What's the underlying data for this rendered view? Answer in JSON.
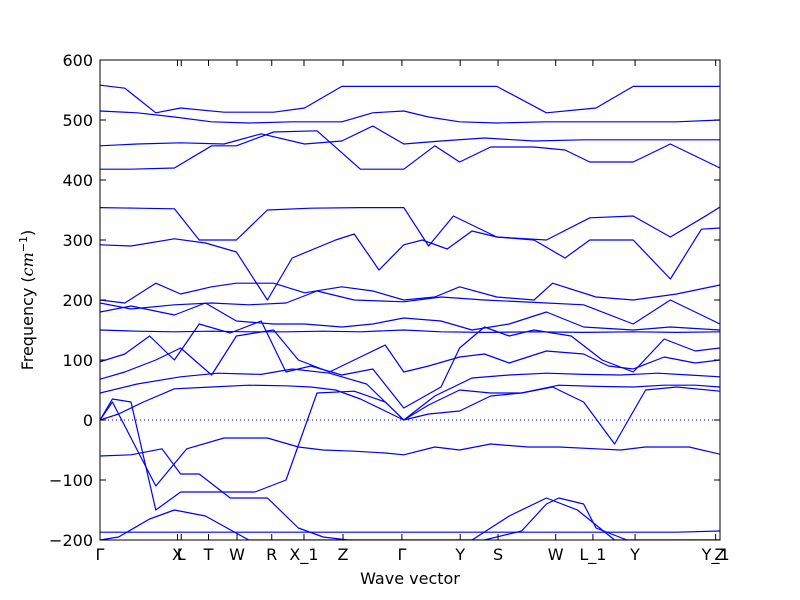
{
  "chart_data": {
    "type": "line",
    "xlabel": "Wave vector",
    "ylabel": "Frequency ",
    "ylabel_unit_base": "cm",
    "ylabel_unit_exp": "−1",
    "ylim": [
      -200,
      600
    ],
    "yticks": [
      -200,
      -100,
      0,
      100,
      200,
      300,
      400,
      500,
      600
    ],
    "grid": false,
    "line_color": "#0000ff",
    "xlim": [
      0,
      1
    ],
    "kpoints": [
      {
        "label": "Γ",
        "x": 0.0
      },
      {
        "label": "X",
        "x": 0.125
      },
      {
        "label": "L",
        "x": 0.131
      },
      {
        "label": "T",
        "x": 0.175
      },
      {
        "label": "W",
        "x": 0.221
      },
      {
        "label": "R",
        "x": 0.277
      },
      {
        "label": "X_1",
        "x": 0.329
      },
      {
        "label": "Z",
        "x": 0.392
      },
      {
        "label": "Γ",
        "x": 0.487
      },
      {
        "label": "Y",
        "x": 0.581
      },
      {
        "label": "S",
        "x": 0.642
      },
      {
        "label": "W",
        "x": 0.735
      },
      {
        "label": "L_1",
        "x": 0.795
      },
      {
        "label": "Y",
        "x": 0.863
      },
      {
        "label": "Y_1",
        "x": 0.993
      },
      {
        "label": "Z",
        "x": 1.0
      }
    ],
    "zero_line": true,
    "series": [
      {
        "x": [
          0,
          0.04,
          0.09,
          0.13,
          0.2,
          0.28,
          0.33,
          0.39,
          0.49,
          0.58,
          0.64,
          0.72,
          0.8,
          0.86,
          0.93,
          1.0
        ],
        "y": [
          558,
          553,
          512,
          520,
          513,
          513,
          520,
          556,
          556,
          556,
          556,
          512,
          520,
          556,
          556,
          556
        ]
      },
      {
        "x": [
          0,
          0.06,
          0.12,
          0.18,
          0.24,
          0.31,
          0.39,
          0.44,
          0.49,
          0.53,
          0.58,
          0.64,
          0.72,
          0.8,
          0.86,
          0.93,
          1.0
        ],
        "y": [
          515,
          512,
          505,
          497,
          495,
          497,
          497,
          512,
          515,
          505,
          497,
          495,
          497,
          497,
          497,
          497,
          500
        ]
      },
      {
        "x": [
          0,
          0.06,
          0.13,
          0.2,
          0.26,
          0.33,
          0.39,
          0.44,
          0.49,
          0.55,
          0.62,
          0.7,
          0.78,
          0.86,
          0.92,
          1.0
        ],
        "y": [
          457,
          460,
          462,
          460,
          477,
          460,
          465,
          490,
          460,
          465,
          470,
          465,
          467,
          467,
          467,
          467
        ]
      },
      {
        "x": [
          0,
          0.05,
          0.12,
          0.18,
          0.22,
          0.28,
          0.35,
          0.42,
          0.49,
          0.54,
          0.58,
          0.63,
          0.7,
          0.75,
          0.79,
          0.86,
          0.92,
          1.0
        ],
        "y": [
          418,
          418,
          420,
          457,
          457,
          480,
          482,
          418,
          418,
          457,
          430,
          455,
          455,
          450,
          430,
          430,
          460,
          420
        ]
      },
      {
        "x": [
          0,
          0.06,
          0.12,
          0.16,
          0.22,
          0.27,
          0.34,
          0.42,
          0.49,
          0.53,
          0.57,
          0.64,
          0.72,
          0.79,
          0.86,
          0.92,
          0.98,
          1.0
        ],
        "y": [
          354,
          353,
          352,
          300,
          300,
          350,
          353,
          354,
          354,
          290,
          340,
          305,
          300,
          337,
          340,
          305,
          342,
          355
        ]
      },
      {
        "x": [
          0,
          0.05,
          0.12,
          0.17,
          0.22,
          0.27,
          0.31,
          0.38,
          0.41,
          0.45,
          0.49,
          0.52,
          0.56,
          0.6,
          0.64,
          0.7,
          0.75,
          0.79,
          0.86,
          0.92,
          0.97,
          1.0
        ],
        "y": [
          292,
          290,
          302,
          295,
          280,
          200,
          270,
          300,
          310,
          250,
          292,
          300,
          285,
          315,
          305,
          300,
          270,
          300,
          300,
          235,
          318,
          320
        ]
      },
      {
        "x": [
          0,
          0.04,
          0.09,
          0.13,
          0.18,
          0.22,
          0.28,
          0.33,
          0.39,
          0.44,
          0.49,
          0.54,
          0.58,
          0.64,
          0.7,
          0.73,
          0.8,
          0.86,
          0.93,
          1.0
        ],
        "y": [
          200,
          195,
          228,
          210,
          222,
          228,
          228,
          212,
          222,
          215,
          200,
          205,
          222,
          205,
          200,
          228,
          205,
          200,
          210,
          225
        ]
      },
      {
        "x": [
          0,
          0.05,
          0.12,
          0.18,
          0.24,
          0.3,
          0.35,
          0.41,
          0.49,
          0.55,
          0.62,
          0.7,
          0.78,
          0.86,
          0.92,
          1.0
        ],
        "y": [
          195,
          185,
          192,
          195,
          192,
          195,
          215,
          200,
          197,
          205,
          200,
          196,
          192,
          160,
          200,
          160
        ]
      },
      {
        "x": [
          0,
          0.05,
          0.12,
          0.17,
          0.22,
          0.28,
          0.33,
          0.39,
          0.44,
          0.49,
          0.55,
          0.6,
          0.66,
          0.72,
          0.78,
          0.86,
          0.92,
          1.0
        ],
        "y": [
          180,
          190,
          175,
          195,
          165,
          160,
          160,
          155,
          160,
          170,
          165,
          150,
          160,
          180,
          155,
          150,
          155,
          150
        ]
      },
      {
        "x": [
          0,
          0.06,
          0.12,
          0.18,
          0.24,
          0.3,
          0.36,
          0.42,
          0.49,
          0.55,
          0.62,
          0.7,
          0.78,
          0.86,
          0.93,
          1.0
        ],
        "y": [
          150,
          148,
          147,
          148,
          147,
          147,
          148,
          147,
          150,
          147,
          146,
          147,
          146,
          147,
          146,
          147
        ]
      },
      {
        "x": [
          0,
          0.04,
          0.08,
          0.12,
          0.16,
          0.21,
          0.26,
          0.3,
          0.34,
          0.39,
          0.44,
          0.49,
          0.55,
          0.58,
          0.62,
          0.66,
          0.7,
          0.76,
          0.81,
          0.86,
          0.91,
          0.96,
          1.0
        ],
        "y": [
          97,
          110,
          140,
          100,
          160,
          145,
          165,
          80,
          90,
          75,
          85,
          20,
          55,
          120,
          155,
          140,
          150,
          140,
          100,
          80,
          135,
          115,
          120
        ]
      },
      {
        "x": [
          0,
          0.04,
          0.09,
          0.13,
          0.18,
          0.22,
          0.28,
          0.32,
          0.37,
          0.42,
          0.46,
          0.49,
          0.53,
          0.58,
          0.62,
          0.66,
          0.72,
          0.78,
          0.82,
          0.86,
          0.91,
          0.96,
          1.0
        ],
        "y": [
          68,
          80,
          100,
          120,
          75,
          140,
          150,
          100,
          80,
          105,
          125,
          80,
          90,
          105,
          110,
          95,
          115,
          110,
          90,
          85,
          105,
          95,
          100
        ]
      },
      {
        "x": [
          0,
          0.06,
          0.13,
          0.19,
          0.26,
          0.31,
          0.37,
          0.43,
          0.49,
          0.54,
          0.6,
          0.66,
          0.72,
          0.78,
          0.84,
          0.9,
          0.95,
          1.0
        ],
        "y": [
          45,
          60,
          72,
          78,
          76,
          85,
          78,
          60,
          0,
          40,
          70,
          75,
          78,
          76,
          75,
          78,
          75,
          72
        ]
      },
      {
        "x": [
          0,
          0.02,
          0.05,
          0.09,
          0.14,
          0.2,
          0.27,
          0.32,
          0.36,
          0.41,
          0.46,
          0.49,
          0.54,
          0.58,
          0.63,
          0.69,
          0.74,
          0.8,
          0.84,
          0.88,
          0.95,
          1.0
        ],
        "y": [
          0,
          30,
          -30,
          -110,
          -48,
          -30,
          -30,
          -45,
          -50,
          -52,
          -55,
          -58,
          -45,
          -50,
          -40,
          -45,
          -45,
          -48,
          -50,
          -45,
          -45,
          -57
        ]
      },
      {
        "x": [
          0,
          0.02,
          0.05,
          0.09,
          0.13,
          0.18,
          0.25,
          0.3,
          0.35,
          0.41,
          0.46,
          0.49,
          0.53,
          0.58,
          0.63,
          0.68,
          0.73,
          0.78,
          0.83,
          0.88,
          0.93,
          1.0
        ],
        "y": [
          0,
          35,
          30,
          -150,
          -120,
          -120,
          -120,
          -100,
          45,
          48,
          30,
          0,
          25,
          50,
          45,
          45,
          55,
          30,
          -40,
          50,
          55,
          48
        ]
      },
      {
        "x": [
          0,
          0.03,
          0.07,
          0.12,
          0.18,
          0.24,
          0.3,
          0.34,
          0.38,
          0.42,
          0.46,
          0.49,
          0.53,
          0.58,
          0.63,
          0.68,
          0.74,
          0.8,
          0.86,
          0.91,
          0.96,
          1.0
        ],
        "y": [
          0,
          10,
          30,
          52,
          55,
          58,
          57,
          55,
          50,
          35,
          15,
          0,
          10,
          15,
          40,
          45,
          58,
          56,
          55,
          58,
          58,
          55
        ]
      },
      {
        "x": [
          0,
          0.05,
          0.1,
          0.13,
          0.16,
          0.21,
          0.27,
          0.32,
          0.36,
          0.4,
          0.49,
          0.56,
          0.62,
          0.68,
          0.72,
          0.74,
          0.78,
          0.8,
          0.85,
          0.92,
          1.0
        ],
        "y": [
          -60,
          -58,
          -48,
          -90,
          -90,
          -130,
          -130,
          -180,
          -195,
          -200,
          -200,
          -200,
          -200,
          -185,
          -140,
          -130,
          -140,
          -180,
          -200,
          -200,
          -200
        ]
      },
      {
        "x": [
          0,
          0.06,
          0.12,
          0.18,
          0.24,
          0.3,
          0.36,
          0.42,
          0.49,
          0.56,
          0.62,
          0.7,
          0.78,
          0.86,
          0.93,
          1.0
        ],
        "y": [
          -187,
          -187,
          -187,
          -187,
          -187,
          -187,
          -187,
          -187,
          -187,
          -187,
          -187,
          -187,
          -187,
          -187,
          -187,
          -185
        ]
      },
      {
        "x": [
          0,
          0.03,
          0.08,
          0.12,
          0.17,
          0.24,
          0.29,
          0.34,
          0.39,
          0.49,
          0.6,
          0.66,
          0.72,
          0.77,
          0.83,
          0.9,
          1.0
        ],
        "y": [
          -200,
          -195,
          -165,
          -150,
          -160,
          -200,
          -200,
          -200,
          -200,
          -200,
          -200,
          -160,
          -130,
          -150,
          -200,
          -200,
          -200
        ]
      }
    ]
  }
}
